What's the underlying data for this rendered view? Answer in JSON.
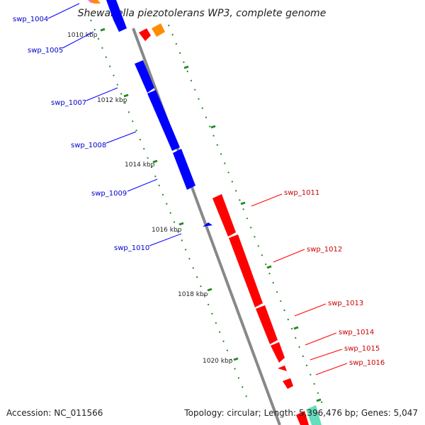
{
  "title": "Shewanella piezotolerans WP3, complete genome",
  "accession": "Accession: NC_011566",
  "summary": "Topology: circular; Length: 5,396,476 bp; Genes: 5,047",
  "colors": {
    "forward": "#ff0000",
    "reverse": "#0000ff",
    "backbone": "#888888",
    "ticks": "#228b22",
    "other_orange": "#ff8c00",
    "other_teal": "#66ddbb",
    "other_pink": "#ff66cc"
  },
  "ticks": [
    {
      "label": "1010 kbp"
    },
    {
      "label": "1012 kbp"
    },
    {
      "label": "1014 kbp"
    },
    {
      "label": "1016 kbp"
    },
    {
      "label": "1018 kbp"
    },
    {
      "label": "1020 kbp"
    }
  ],
  "reverse_genes": [
    {
      "label": "swp_1004"
    },
    {
      "label": "swp_1005"
    },
    {
      "label": "swp_1007"
    },
    {
      "label": "swp_1008"
    },
    {
      "label": "swp_1009"
    },
    {
      "label": "swp_1010"
    }
  ],
  "forward_genes": [
    {
      "label": "swp_1011"
    },
    {
      "label": "swp_1012"
    },
    {
      "label": "swp_1013"
    },
    {
      "label": "swp_1014"
    },
    {
      "label": "swp_1015"
    },
    {
      "label": "swp_1016"
    }
  ]
}
